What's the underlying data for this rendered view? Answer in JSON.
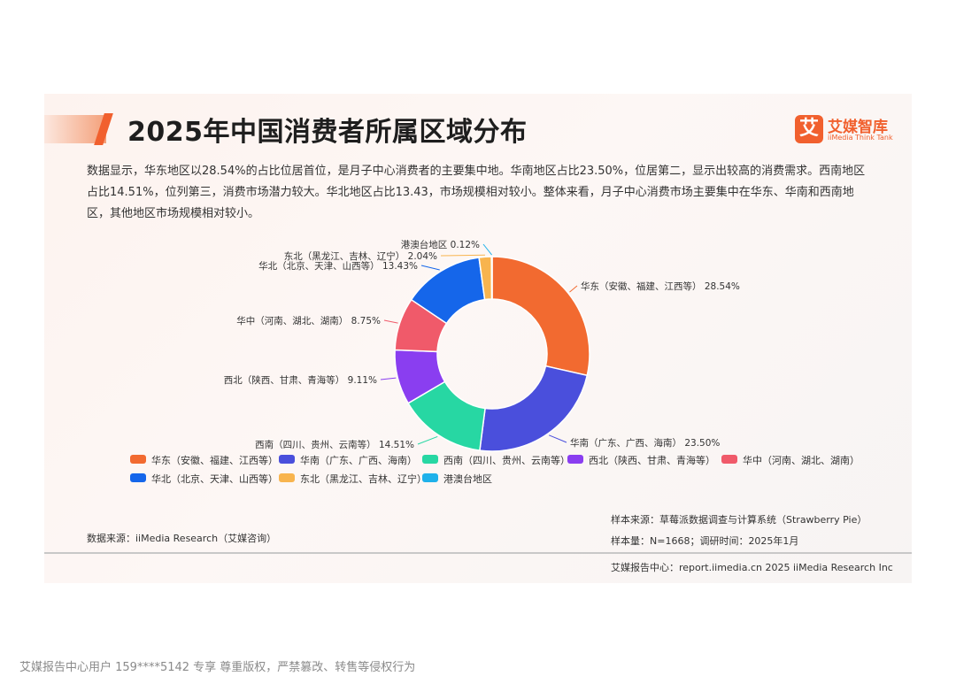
{
  "header": {
    "title": "2025年中国消费者所属区域分布",
    "logo_mark": "艾",
    "logo_name": "艾媒智库",
    "logo_sub": "iiMedia Think Tank"
  },
  "description": "数据显示，华东地区以28.54%的占比位居首位，是月子中心消费者的主要集中地。华南地区占比23.50%，位居第二，显示出较高的消费需求。西南地区占比14.51%，位列第三，消费市场潜力较大。华北地区占比13.43，市场规模相对较小。整体来看，月子中心消费市场主要集中在华东、华南和西南地区，其他地区市场规模相对较小。",
  "chart_data": {
    "type": "pie",
    "donut": true,
    "legend_position": "bottom",
    "unit": "%",
    "slices": [
      {
        "name": "华东（安徽、福建、江西等）",
        "value": 28.54,
        "label": "华东（安徽、福建、江西等） 28.54%",
        "color": "#f26a30"
      },
      {
        "name": "华南（广东、广西、海南）",
        "value": 23.5,
        "label": "华南（广东、广西、海南） 23.50%",
        "color": "#4a4fdc"
      },
      {
        "name": "西南（四川、贵州、云南等）",
        "value": 14.51,
        "label": "西南（四川、贵州、云南等） 14.51%",
        "color": "#27d7a3"
      },
      {
        "name": "西北（陕西、甘肃、青海等）",
        "value": 9.11,
        "label": "西北（陕西、甘肃、青海等） 9.11%",
        "color": "#8a3ef0"
      },
      {
        "name": "华中（河南、湖北、湖南）",
        "value": 8.75,
        "label": "华中（河南、湖北、湖南） 8.75%",
        "color": "#f05a6a"
      },
      {
        "name": "华北（北京、天津、山西等）",
        "value": 13.43,
        "label": "华北（北京、天津、山西等） 13.43%",
        "color": "#1566ea"
      },
      {
        "name": "东北（黑龙江、吉林、辽宁）",
        "value": 2.04,
        "label": "东北（黑龙江、吉林、辽宁） 2.04%",
        "color": "#f8b44e"
      },
      {
        "name": "港澳台地区",
        "value": 0.12,
        "label": "港澳台地区 0.12%",
        "color": "#1fb1ea"
      }
    ]
  },
  "sources": {
    "data_source": "数据来源：iiMedia Research（艾媒咨询）",
    "sample_source": "样本来源：草莓派数据调查与计算系统（Strawberry Pie）",
    "sample_size": "样本量：N=1668；调研时间：2025年1月",
    "report_center": "艾媒报告中心：report.iimedia.cn 2025 iiMedia Research Inc"
  },
  "watermark": "艾媒报告中心用户 159****5142 专享 尊重版权，严禁篡改、转售等侵权行为"
}
